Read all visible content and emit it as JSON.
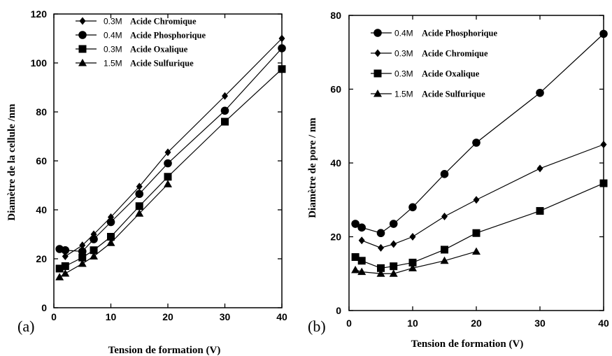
{
  "chart_data": [
    {
      "type": "line",
      "panel_label": "(a)",
      "xlabel": "Tension de formation (V)",
      "ylabel": "Diamètre de la cellule /nm",
      "xlim": [
        0,
        40
      ],
      "ylim": [
        0,
        120
      ],
      "xticks": [
        0,
        10,
        20,
        30,
        40
      ],
      "yticks": [
        0,
        20,
        40,
        60,
        80,
        100,
        120
      ],
      "grid": false,
      "legend_position": "top-left",
      "series": [
        {
          "conc": "0.3M",
          "name": "Acide Chromique",
          "marker": "diamond",
          "x": [
            2,
            5,
            7,
            10,
            15,
            20,
            30,
            40
          ],
          "y": [
            21,
            25.5,
            30,
            37,
            49.5,
            63.5,
            86.5,
            110
          ]
        },
        {
          "conc": "0.4M",
          "name": "Acide Phosphorique",
          "marker": "circle",
          "x": [
            1,
            2,
            5,
            7,
            10,
            15,
            20,
            30,
            40
          ],
          "y": [
            24,
            23.5,
            23,
            28,
            35,
            46.5,
            59,
            80.5,
            106
          ]
        },
        {
          "conc": "0.3M",
          "name": "Acide Oxalique",
          "marker": "square",
          "x": [
            1,
            2,
            5,
            7,
            10,
            15,
            20,
            30,
            40
          ],
          "y": [
            16,
            17,
            20.5,
            23.5,
            29,
            41.5,
            53.5,
            76,
            97.5
          ]
        },
        {
          "conc": "1.5M",
          "name": "Acide Sulfurique",
          "marker": "triangle",
          "x": [
            1,
            2,
            5,
            7,
            10,
            15,
            20
          ],
          "y": [
            12.5,
            14,
            18,
            21,
            26.5,
            38.5,
            50.5
          ]
        }
      ]
    },
    {
      "type": "line",
      "panel_label": "(b)",
      "xlabel": "Tension de formation (V)",
      "ylabel": "Diamètre de pore / nm",
      "xlim": [
        0,
        40
      ],
      "ylim": [
        0,
        80
      ],
      "xticks": [
        0,
        10,
        20,
        30,
        40
      ],
      "yticks": [
        0,
        20,
        40,
        60,
        80
      ],
      "grid": false,
      "legend_position": "top-left",
      "series": [
        {
          "conc": "0.4M",
          "name": "Acide Phosphorique",
          "marker": "circle",
          "x": [
            1,
            2,
            5,
            7,
            10,
            15,
            20,
            30,
            40
          ],
          "y": [
            23.5,
            22.5,
            21,
            23.5,
            28,
            37,
            45.5,
            59,
            75
          ]
        },
        {
          "conc": "0.3M",
          "name": "Acide Chromique",
          "marker": "diamond",
          "x": [
            2,
            5,
            7,
            10,
            15,
            20,
            30,
            40
          ],
          "y": [
            19,
            17,
            18,
            20,
            25.5,
            30,
            38.5,
            45
          ]
        },
        {
          "conc": "0.3M",
          "name": "Acide Oxalique",
          "marker": "square",
          "x": [
            1,
            2,
            5,
            7,
            10,
            15,
            20,
            30,
            40
          ],
          "y": [
            14.5,
            13.5,
            11.5,
            12,
            13,
            16.5,
            21,
            27,
            34.5
          ]
        },
        {
          "conc": "1.5M",
          "name": "Acide Sulfurique",
          "marker": "triangle",
          "x": [
            1,
            2,
            5,
            7,
            10,
            15,
            20
          ],
          "y": [
            11,
            10.5,
            10,
            10,
            11.5,
            13.5,
            16
          ]
        }
      ]
    }
  ]
}
